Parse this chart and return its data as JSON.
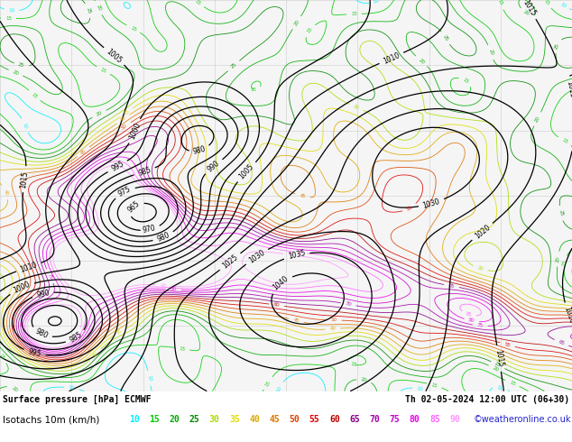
{
  "title_line1": "Surface pressure [hPa] ECMWF",
  "title_date": "Th 02-05-2024 12:00 UTC (06+30)",
  "legend_label": "Isotachs 10m (km/h)",
  "copyright": "©weatheronline.co.uk",
  "isotach_values": [
    10,
    15,
    20,
    25,
    30,
    35,
    40,
    45,
    50,
    55,
    60,
    65,
    70,
    75,
    80,
    85,
    90
  ],
  "isotach_colors": [
    "#00eeff",
    "#00cc00",
    "#00aa00",
    "#008800",
    "#aadd00",
    "#dddd00",
    "#ddaa00",
    "#dd7700",
    "#dd4400",
    "#dd0000",
    "#bb0000",
    "#880088",
    "#aa00aa",
    "#cc00cc",
    "#ee00ee",
    "#ff66ff",
    "#ff99ff"
  ],
  "bg_color": "#ffffff",
  "map_bg": "#f5f5f5",
  "grid_color": "#cccccc",
  "fig_width": 6.34,
  "fig_height": 4.9,
  "dpi": 100
}
